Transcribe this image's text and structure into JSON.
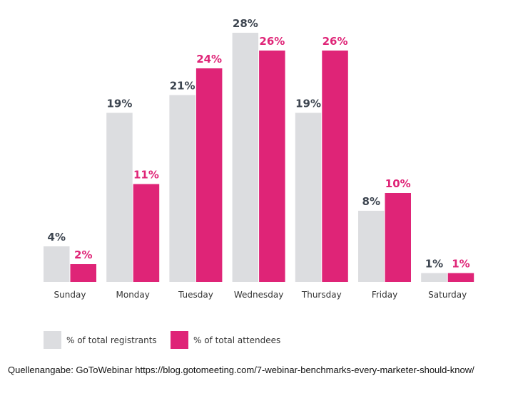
{
  "chart_data": {
    "type": "bar",
    "categories": [
      "Sunday",
      "Monday",
      "Tuesday",
      "Wednesday",
      "Thursday",
      "Friday",
      "Saturday"
    ],
    "series": [
      {
        "name": "% of total registrants",
        "values": [
          4,
          19,
          21,
          28,
          19,
          8,
          1
        ],
        "labels": [
          "4%",
          "19%",
          "21%",
          "28%",
          "19%",
          "8%",
          "1%"
        ],
        "color": "#dcdde0",
        "label_color": "#3d4550"
      },
      {
        "name": "% of total attendees",
        "values": [
          2,
          11,
          24,
          26,
          26,
          10,
          1
        ],
        "labels": [
          "2%",
          "11%",
          "24%",
          "26%",
          "26%",
          "10%",
          "1%"
        ],
        "color": "#df2477",
        "label_color": "#df2477"
      }
    ],
    "ylim": [
      0,
      28
    ],
    "grid": false,
    "legend_position": "bottom-left"
  },
  "source": "Quellenangabe: GoToWebinar https://blog.gotomeeting.com/7-webinar-benchmarks-every-marketer-should-know/"
}
